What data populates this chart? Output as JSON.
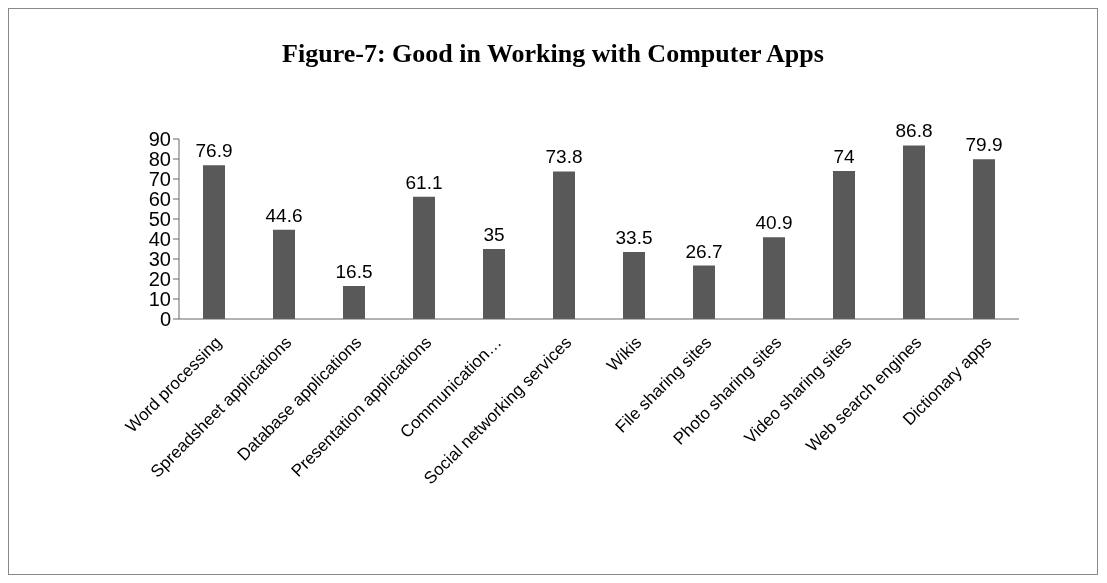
{
  "chart_data": {
    "type": "bar",
    "title": "Figure-7: Good in Working with Computer Apps",
    "categories": [
      "Word processing",
      "Spreadsheet applications",
      "Database applications",
      "Presentation applications",
      "Communication…",
      "Social networking services",
      "Wikis",
      "File sharing sites",
      "Photo sharing sites",
      "Video sharing sites",
      "Web search engines",
      "Dictionary apps"
    ],
    "values": [
      76.9,
      44.6,
      16.5,
      61.1,
      35,
      73.8,
      33.5,
      26.7,
      40.9,
      74,
      86.8,
      79.9
    ],
    "color": "#595959",
    "ylim": [
      0,
      90
    ],
    "yticks": [
      0,
      10,
      20,
      30,
      40,
      50,
      60,
      70,
      80,
      90
    ],
    "grid": false,
    "data_labels": true
  }
}
